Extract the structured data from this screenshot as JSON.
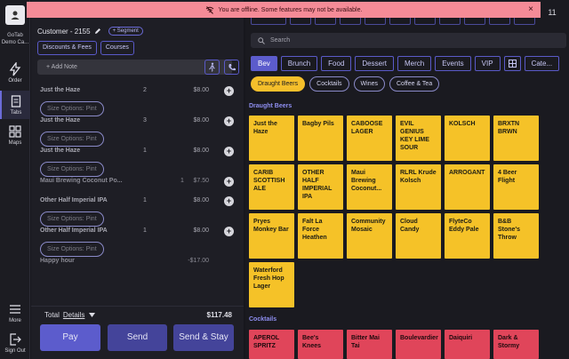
{
  "rail": {
    "account_line1": "GoTab",
    "account_line2": "Demo Ca...",
    "nav": [
      {
        "label": "Order"
      },
      {
        "label": "Tabs"
      },
      {
        "label": "Maps"
      },
      {
        "label": "More"
      },
      {
        "label": "Sign Out"
      }
    ]
  },
  "banner": {
    "text": "You are offline. Some features may not be available.",
    "close": "×"
  },
  "order": {
    "customer": "Customer - 2155",
    "segment_label": "+ Segment",
    "chips": [
      "Discounts & Fees",
      "Courses"
    ],
    "note_placeholder": "+ Add Note",
    "items": [
      {
        "name": "Just the Haze",
        "qty": "2",
        "price": "$8.00",
        "sub": "Size Options: Pint"
      },
      {
        "name": "Just the Haze",
        "qty": "3",
        "price": "$8.00",
        "sub": "Size Options: Pint"
      },
      {
        "name": "Just the Haze",
        "qty": "1",
        "price": "$8.00",
        "sub": "Size Options: Pint"
      },
      {
        "name": "Maui Brewing Coconut Po...",
        "qty": "1",
        "price": "$7.50",
        "sub": ""
      },
      {
        "name": "Other Half Imperial IPA",
        "qty": "1",
        "price": "$8.00",
        "sub": "Size Options: Pint"
      },
      {
        "name": "Other Half Imperial IPA",
        "qty": "1",
        "price": "$8.00",
        "sub": "Size Options: Pint"
      },
      {
        "name": "Happy hour",
        "qty": "",
        "price": "-$17.00",
        "sub": ""
      }
    ],
    "total_label": "Total",
    "details_label": "Details",
    "total_amount": "$117.48",
    "pay_label": "Pay",
    "send_label": "Send",
    "send_stay_label": "Send & Stay"
  },
  "menu": {
    "page_number": "11",
    "search_placeholder": "Search",
    "categories": [
      "Bev",
      "Brunch",
      "Food",
      "Dessert",
      "Merch",
      "Events",
      "VIP",
      "Cate..."
    ],
    "subcategories": [
      "Draught Beers",
      "Cocktails",
      "Wines",
      "Coffee & Tea"
    ],
    "section_draught": "Draught Beers",
    "section_cocktails": "Cocktails",
    "draught_tiles": [
      "Just the Haze",
      "Bagby Pils",
      "CABOOSE LAGER",
      "EVIL GENIUS KEY LIME SOUR",
      "KOLSCH",
      "BRXTN BRWN",
      "CARIB SCOTTISH ALE",
      "OTHER HALF IMPERIAL IPA",
      "Maui Brewing Coconut...",
      "RLRL Krude Kolsch",
      "ARROGANT",
      "4 Beer Flight",
      "Pryes Monkey Bar",
      "Falt La Force Heathen",
      "Community Mosaic",
      "Cloud Candy",
      "FlyteCo Eddy Pale",
      "B&B Stone's Throw",
      "Waterford Fresh Hop Lager"
    ],
    "cocktail_tiles": [
      "APEROL SPRITZ",
      "Bee's Knees",
      "Bitter Mai Tai",
      "Boulevardier",
      "Daiquiri",
      "Dark & Stormy"
    ]
  },
  "colors": {
    "accent": "#5c5ccc",
    "beer_tile": "#f5c228",
    "cocktail_tile": "#e0455a",
    "banner": "#f58b97"
  }
}
